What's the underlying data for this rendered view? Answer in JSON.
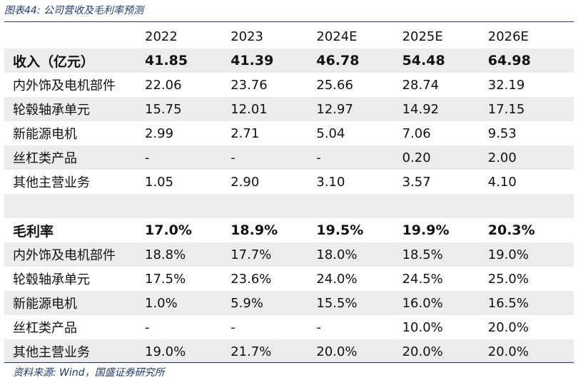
{
  "caption": "图表44:  公司营收及毛利率预测",
  "source": "资料来源: Wind，国盛证券研究所",
  "header": {
    "label": "",
    "years": [
      "2022",
      "2023",
      "2024E",
      "2025E",
      "2026E"
    ]
  },
  "revenue": {
    "title": {
      "label": "收入（亿元）",
      "values": [
        "41.85",
        "41.39",
        "46.78",
        "54.48",
        "64.98"
      ]
    },
    "rows": [
      {
        "label": "内外饰及电机部件",
        "values": [
          "22.06",
          "23.76",
          "25.66",
          "28.74",
          "32.19"
        ]
      },
      {
        "label": "轮毂轴承单元",
        "values": [
          "15.75",
          "12.01",
          "12.97",
          "14.92",
          "17.15"
        ]
      },
      {
        "label": "新能源电机",
        "values": [
          "2.99",
          "2.71",
          "5.04",
          "7.06",
          "9.53"
        ]
      },
      {
        "label": "丝杠类产品",
        "values": [
          "-",
          "-",
          "-",
          "0.20",
          "2.00"
        ]
      },
      {
        "label": "其他主营业务",
        "values": [
          "1.05",
          "2.90",
          "3.10",
          "3.57",
          "4.10"
        ]
      }
    ]
  },
  "gross_margin": {
    "title": {
      "label": "毛利率",
      "values": [
        "17.0%",
        "18.9%",
        "19.5%",
        "19.9%",
        "20.3%"
      ]
    },
    "rows": [
      {
        "label": "内外饰及电机部件",
        "values": [
          "18.8%",
          "17.7%",
          "18.0%",
          "18.5%",
          "19.0%"
        ]
      },
      {
        "label": "轮毂轴承单元",
        "values": [
          "17.5%",
          "23.6%",
          "24.0%",
          "24.5%",
          "25.0%"
        ]
      },
      {
        "label": "新能源电机",
        "values": [
          "1.0%",
          "5.9%",
          "15.5%",
          "16.0%",
          "16.5%"
        ]
      },
      {
        "label": "丝杠类产品",
        "values": [
          "-",
          "-",
          "-",
          "10.0%",
          "20.0%"
        ]
      },
      {
        "label": "其他主营业务",
        "values": [
          "19.0%",
          "21.7%",
          "20.0%",
          "20.0%",
          "20.0%"
        ]
      }
    ]
  }
}
